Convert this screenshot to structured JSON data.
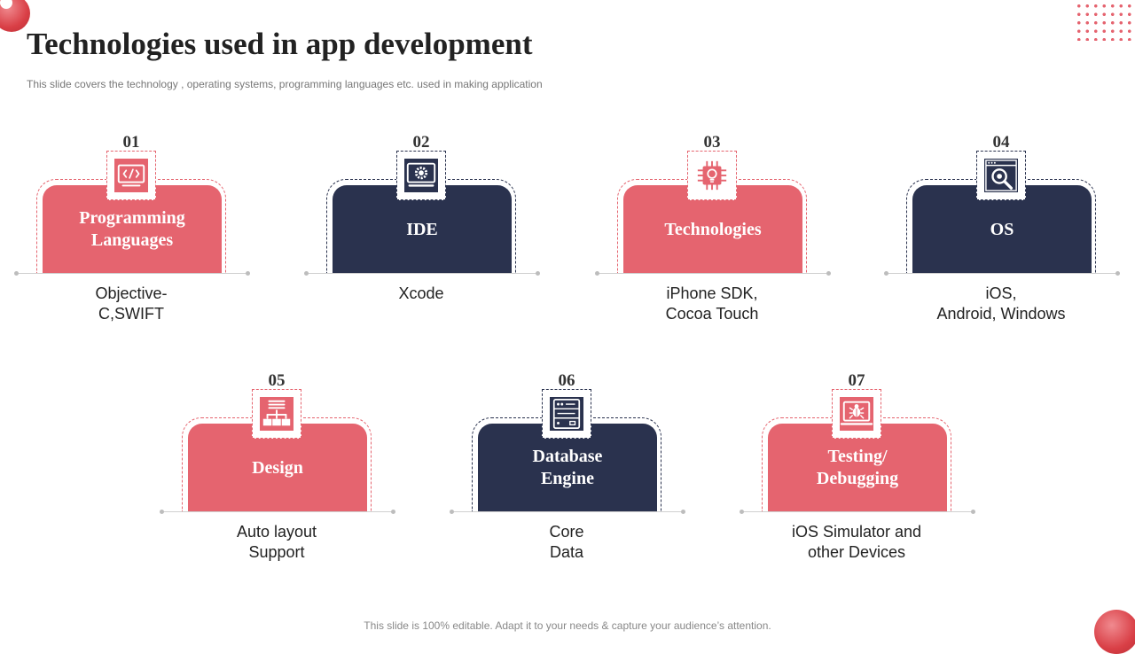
{
  "title": "Technologies used in app development",
  "subtitle": "This slide covers the technology ,  operating systems, programming languages etc. used in making application",
  "footer": "This slide is 100% editable. Adapt it to your needs & capture your audience’s attention.",
  "colors": {
    "accent_pink": "#e5646f",
    "accent_navy": "#2a324e"
  },
  "items": [
    {
      "number": "01",
      "title_line1": "Programming",
      "title_line2": "Languages",
      "desc_line1": "Objective-",
      "desc_line2": "C,SWIFT",
      "icon": "code-window-icon"
    },
    {
      "number": "02",
      "title_line1": "IDE",
      "title_line2": "",
      "desc_line1": "Xcode",
      "desc_line2": "",
      "icon": "gear-monitor-icon"
    },
    {
      "number": "03",
      "title_line1": "Technologies",
      "title_line2": "",
      "desc_line1": "iPhone SDK,",
      "desc_line2": "Cocoa Touch",
      "icon": "chip-bulb-icon"
    },
    {
      "number": "04",
      "title_line1": "OS",
      "title_line2": "",
      "desc_line1": "iOS,",
      "desc_line2": "Android, Windows",
      "icon": "browser-search-icon"
    },
    {
      "number": "05",
      "title_line1": "Design",
      "title_line2": "",
      "desc_line1": "Auto layout",
      "desc_line2": "Support",
      "icon": "sitemap-document-icon"
    },
    {
      "number": "06",
      "title_line1": "Database",
      "title_line2": "Engine",
      "desc_line1": "Core",
      "desc_line2": "Data",
      "icon": "server-icon"
    },
    {
      "number": "07",
      "title_line1": "Testing/",
      "title_line2": "Debugging",
      "desc_line1": "iOS Simulator and",
      "desc_line2": "other Devices",
      "icon": "bug-laptop-icon"
    }
  ]
}
